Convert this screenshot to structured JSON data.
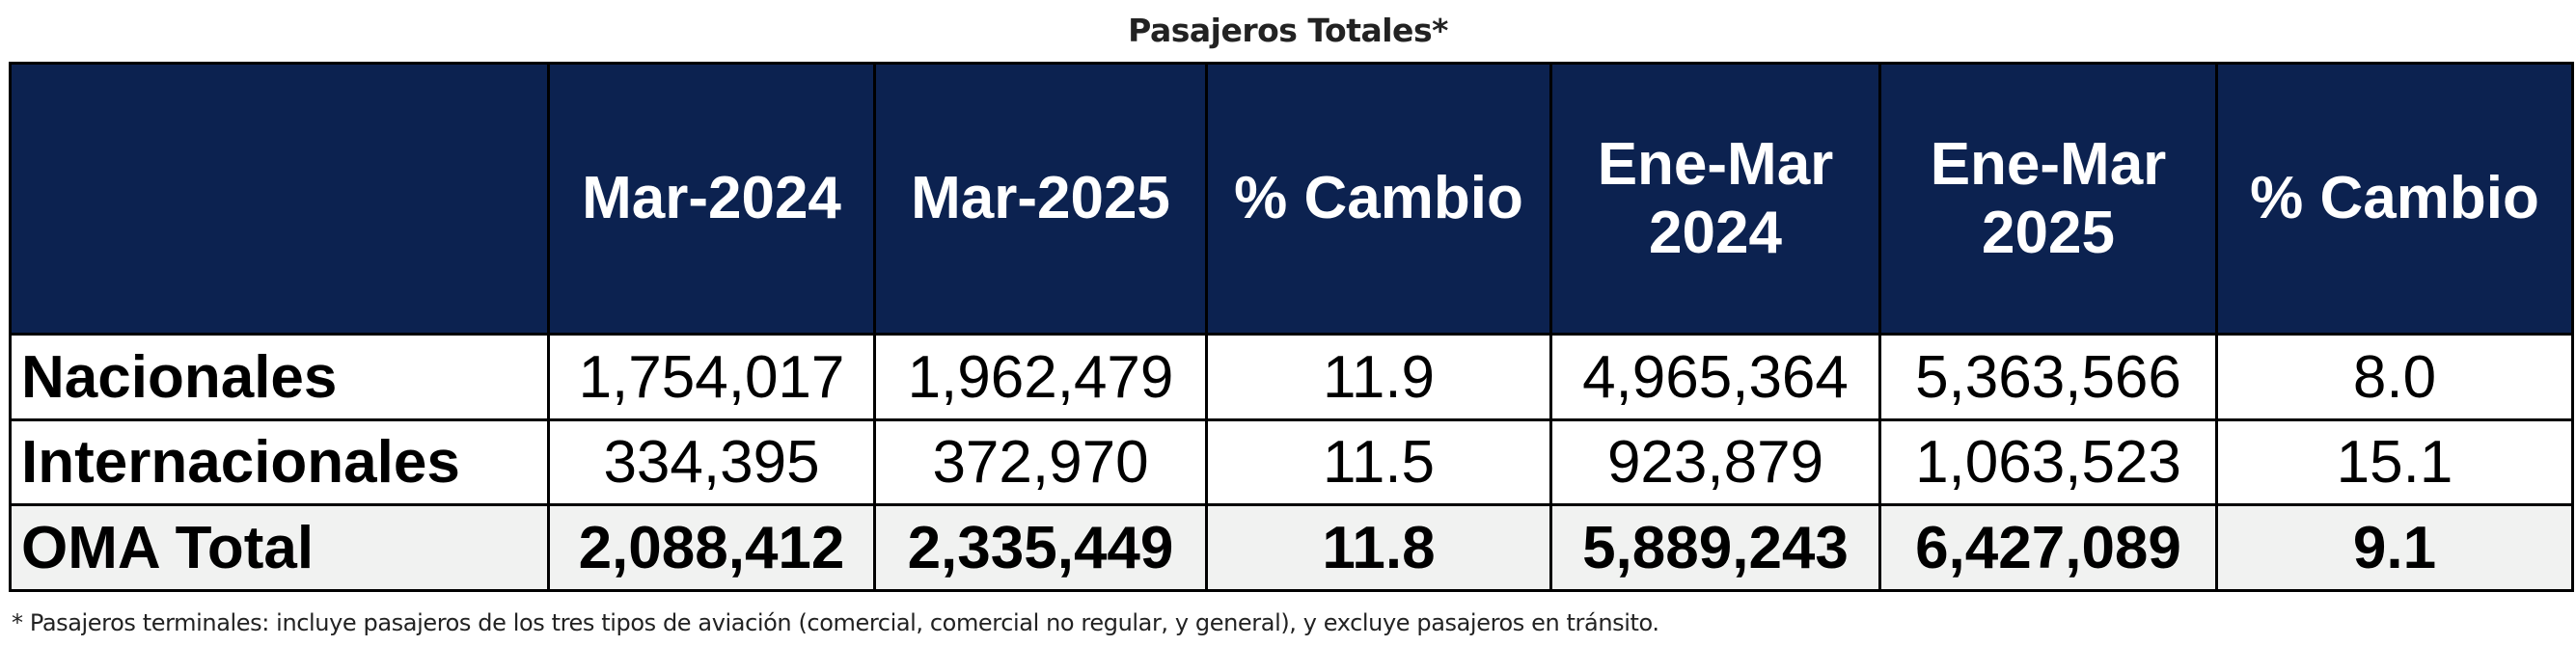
{
  "title": "Pasajeros Totales*",
  "columns": [
    "",
    "Mar-2024",
    "Mar-2025",
    "% Cambio",
    "Ene-Mar\n2024",
    "Ene-Mar\n2025",
    "% Cambio"
  ],
  "rows": [
    {
      "label": "Nacionales",
      "values": [
        "1,754,017",
        "1,962,479",
        "11.9",
        "4,965,364",
        "5,363,566",
        "8.0"
      ]
    },
    {
      "label": "Internacionales",
      "values": [
        "334,395",
        "372,970",
        "11.5",
        "923,879",
        "1,063,523",
        "15.1"
      ]
    },
    {
      "label": "OMA Total",
      "values": [
        "2,088,412",
        "2,335,449",
        "11.8",
        "5,889,243",
        "6,427,089",
        "9.1"
      ]
    }
  ],
  "footnote": "* Pasajeros terminales: incluye pasajeros de los tres tipos de aviación (comercial, comercial no regular, y general), y excluye pasajeros en tránsito.",
  "colors": {
    "header_bg": "#0c2250",
    "total_bg": "#f1f2f1"
  }
}
